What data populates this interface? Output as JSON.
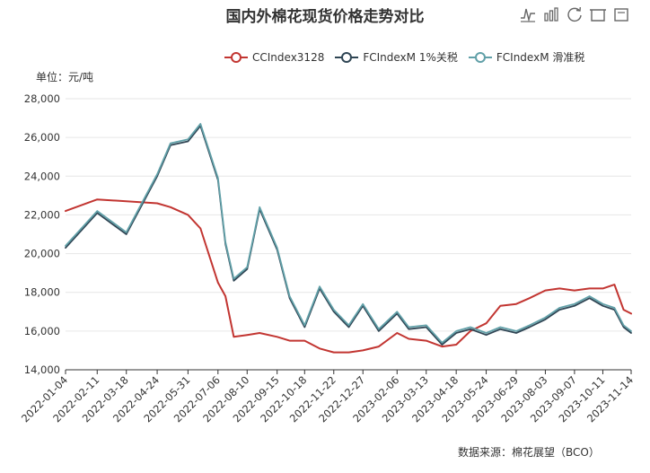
{
  "title": "国内外棉花现货价格走势对比",
  "unit_label": "单位：元/吨",
  "source_note": "数据来源：棉花展望（BCO）",
  "toolbox": [
    {
      "name": "line-chart-icon"
    },
    {
      "name": "bar-chart-icon"
    },
    {
      "name": "restore-icon"
    },
    {
      "name": "save-image-icon"
    },
    {
      "name": "data-view-icon"
    }
  ],
  "colors": {
    "series1": "#c23531",
    "series2": "#2f4554",
    "series3": "#61a0a8",
    "grid": "#e6e6e6",
    "axis": "#333333"
  },
  "chart_data": {
    "type": "line",
    "xlabel": "",
    "ylabel": "",
    "ylim": [
      14000,
      28000
    ],
    "yticks": [
      "14,000",
      "16,000",
      "18,000",
      "20,000",
      "22,000",
      "24,000",
      "26,000",
      "28,000"
    ],
    "xticks": [
      "2022-01-04",
      "2022-02-11",
      "2022-03-18",
      "2022-04-24",
      "2022-05-31",
      "2022-07-06",
      "2022-08-10",
      "2022-09-15",
      "2022-10-18",
      "2022-11-22",
      "2022-12-27",
      "2023-02-06",
      "2023-03-13",
      "2023-04-18",
      "2023-05-24",
      "2023-06-29",
      "2023-08-03",
      "2023-09-07",
      "2023-10-11",
      "2023-11-14"
    ],
    "x": [
      "2022-01-04",
      "2022-02-11",
      "2022-03-18",
      "2022-04-24",
      "2022-05-10",
      "2022-05-31",
      "2022-06-15",
      "2022-07-06",
      "2022-07-15",
      "2022-07-25",
      "2022-08-10",
      "2022-08-25",
      "2022-09-15",
      "2022-09-30",
      "2022-10-18",
      "2022-11-05",
      "2022-11-22",
      "2022-12-10",
      "2022-12-27",
      "2023-01-15",
      "2023-02-06",
      "2023-02-20",
      "2023-03-13",
      "2023-04-01",
      "2023-04-18",
      "2023-05-05",
      "2023-05-24",
      "2023-06-10",
      "2023-06-29",
      "2023-07-15",
      "2023-08-03",
      "2023-08-20",
      "2023-09-07",
      "2023-09-25",
      "2023-10-11",
      "2023-10-25",
      "2023-11-05",
      "2023-11-14"
    ],
    "series": [
      {
        "name": "CCIndex3128",
        "values": [
          22200,
          22800,
          22700,
          22600,
          22400,
          22000,
          21300,
          18500,
          17800,
          15700,
          15800,
          15900,
          15700,
          15500,
          15500,
          15100,
          14900,
          14900,
          15000,
          15200,
          15900,
          15600,
          15500,
          15200,
          15300,
          16000,
          16400,
          17300,
          17400,
          17700,
          18100,
          18200,
          18100,
          18200,
          18200,
          18400,
          17100,
          16900
        ]
      },
      {
        "name": "FCIndexM 1%关税",
        "values": [
          20300,
          22100,
          21000,
          24000,
          25600,
          25800,
          26600,
          23800,
          20500,
          18600,
          19200,
          22300,
          20200,
          17700,
          16200,
          18200,
          17000,
          16200,
          17300,
          16000,
          16900,
          16100,
          16200,
          15300,
          15900,
          16100,
          15800,
          16100,
          15900,
          16200,
          16600,
          17100,
          17300,
          17700,
          17300,
          17100,
          16200,
          15900
        ]
      },
      {
        "name": "FCIndexM 滑准税",
        "values": [
          20400,
          22200,
          21100,
          24100,
          25700,
          25900,
          26700,
          23900,
          20600,
          18700,
          19300,
          22400,
          20300,
          17800,
          16300,
          18300,
          17100,
          16300,
          17400,
          16100,
          17000,
          16200,
          16300,
          15400,
          16000,
          16200,
          15900,
          16200,
          16000,
          16300,
          16700,
          17200,
          17400,
          17800,
          17400,
          17200,
          16300,
          16000
        ]
      }
    ],
    "grid": true,
    "legend_position": "top-right"
  }
}
